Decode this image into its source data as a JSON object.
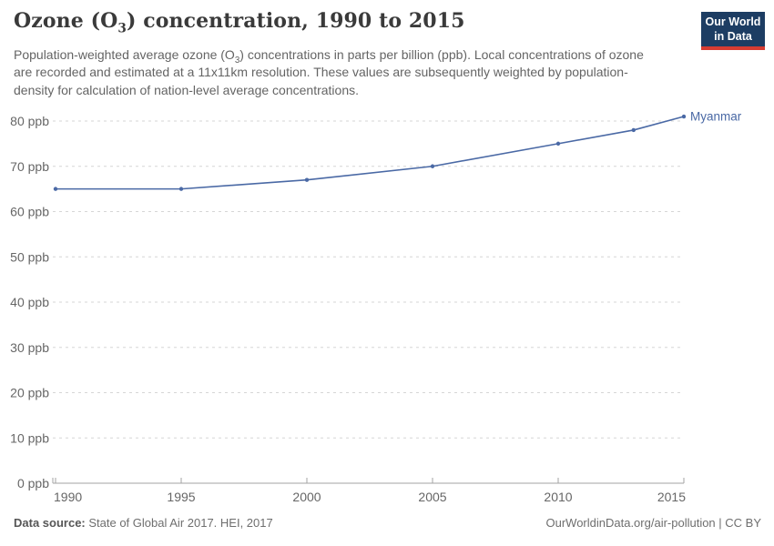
{
  "header": {
    "title_parts": [
      "Ozone (O",
      "3",
      ") concentration, 1990 to 2015"
    ],
    "subtitle_parts": [
      "Population-weighted average ozone (O",
      "3",
      ") concentrations in parts per billion (ppb). Local concentrations of ozone are recorded and estimated at a 11x11km resolution. These values are subsequently weighted by population-density for calculation of nation-level average concentrations."
    ]
  },
  "logo": {
    "line1": "Our World",
    "line2": "in Data",
    "bg_color": "#1d3d63",
    "bar_color": "#d73c32"
  },
  "chart_data": {
    "type": "line",
    "title": "Ozone (O3) concentration, 1990 to 2015",
    "x": [
      1990,
      1995,
      2000,
      2005,
      2010,
      2013,
      2015
    ],
    "series": [
      {
        "name": "Myanmar",
        "color": "#4a69a5",
        "values": [
          65,
          65,
          67,
          70,
          75,
          78,
          81
        ]
      }
    ],
    "x_ticks": [
      1990,
      1995,
      2000,
      2005,
      2010,
      2015
    ],
    "y_ticks": [
      0,
      10,
      20,
      30,
      40,
      50,
      60,
      70,
      80
    ],
    "y_tick_suffix": " ppb",
    "xlim": [
      1990,
      2015
    ],
    "ylim": [
      0,
      81.5
    ],
    "grid": "horizontal-dashed",
    "legend_position": "line-end-label",
    "grid_color": "#d6d6d6",
    "axis_color": "#a3a3a3",
    "tick_label_color": "#666666"
  },
  "footer": {
    "datasource_label": "Data source:",
    "datasource_value": " State of Global Air 2017. HEI, 2017",
    "credit": "OurWorldinData.org/air-pollution | CC BY"
  }
}
